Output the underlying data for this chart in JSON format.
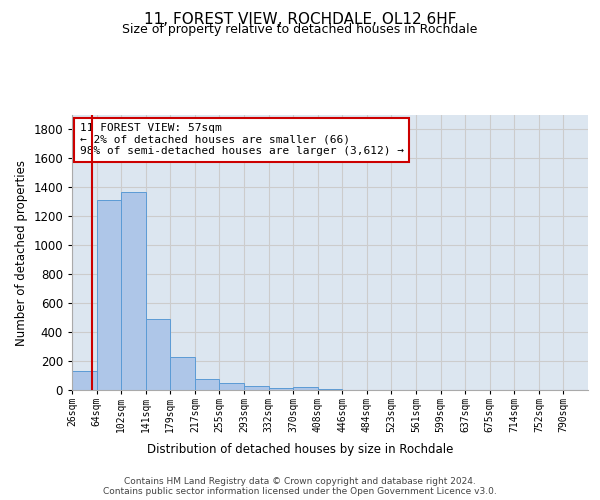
{
  "title": "11, FOREST VIEW, ROCHDALE, OL12 6HF",
  "subtitle": "Size of property relative to detached houses in Rochdale",
  "xlabel": "Distribution of detached houses by size in Rochdale",
  "ylabel": "Number of detached properties",
  "bar_labels": [
    "26sqm",
    "64sqm",
    "102sqm",
    "141sqm",
    "179sqm",
    "217sqm",
    "255sqm",
    "293sqm",
    "332sqm",
    "370sqm",
    "408sqm",
    "446sqm",
    "484sqm",
    "523sqm",
    "561sqm",
    "599sqm",
    "637sqm",
    "675sqm",
    "714sqm",
    "752sqm",
    "790sqm"
  ],
  "bar_values": [
    130,
    1310,
    1365,
    490,
    225,
    75,
    45,
    28,
    15,
    20,
    8,
    0,
    0,
    0,
    0,
    0,
    0,
    0,
    0,
    0,
    0
  ],
  "bar_color": "#aec6e8",
  "bar_edge_color": "#5b9bd5",
  "ylim": [
    0,
    1900
  ],
  "yticks": [
    0,
    200,
    400,
    600,
    800,
    1000,
    1200,
    1400,
    1600,
    1800
  ],
  "annotation_title": "11 FOREST VIEW: 57sqm",
  "annotation_line1": "← 2% of detached houses are smaller (66)",
  "annotation_line2": "98% of semi-detached houses are larger (3,612) →",
  "vline_color": "#cc0000",
  "grid_color": "#cccccc",
  "background_color": "#dce6f0",
  "footer_line1": "Contains HM Land Registry data © Crown copyright and database right 2024.",
  "footer_line2": "Contains public sector information licensed under the Open Government Licence v3.0."
}
